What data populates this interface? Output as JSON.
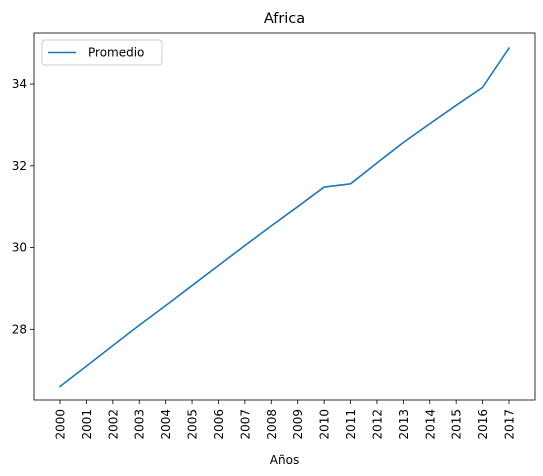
{
  "chart_data": {
    "type": "line",
    "title": "Africa",
    "xlabel": "Años",
    "ylabel": "",
    "categories": [
      "2000",
      "2001",
      "2002",
      "2003",
      "2004",
      "2005",
      "2006",
      "2007",
      "2008",
      "2009",
      "2010",
      "2011",
      "2012",
      "2013",
      "2014",
      "2015",
      "2016",
      "2017"
    ],
    "series": [
      {
        "name": "Promedio",
        "color": "#1f77b4",
        "values": [
          26.6,
          27.1,
          27.6,
          28.1,
          28.58,
          29.07,
          29.56,
          30.05,
          30.53,
          31.0,
          31.48,
          31.56,
          32.07,
          32.57,
          33.03,
          33.48,
          33.92,
          34.88
        ]
      }
    ],
    "ylim": [
      26.27,
      35.25
    ],
    "yticks": [
      28,
      30,
      32,
      34
    ],
    "grid": false,
    "legend": "top-left"
  }
}
